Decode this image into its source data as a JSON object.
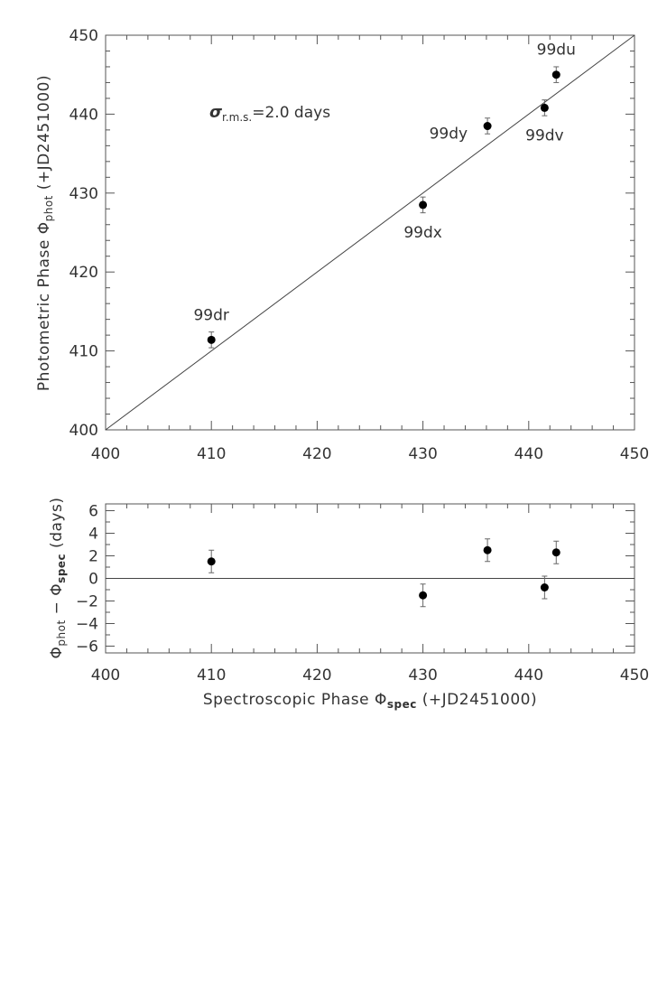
{
  "chart_data": [
    {
      "type": "scatter",
      "ylabel_main": "Photometric Phase ",
      "ylabel_sym": "Φ",
      "ylabel_sub": "phot",
      "ylabel_tail": " (+JD2451000)",
      "xlim": [
        400,
        450
      ],
      "ylim": [
        400,
        450
      ],
      "xticks": [
        400,
        410,
        420,
        430,
        440,
        450
      ],
      "yticks": [
        400,
        410,
        420,
        430,
        440,
        450
      ],
      "annotation_sigma": "σ",
      "annotation_sub": "r.m.s.",
      "annotation_tail": "=2.0 days",
      "fit_line": {
        "x": [
          400,
          450
        ],
        "y": [
          400,
          450
        ]
      },
      "points": [
        {
          "name": "99dr",
          "x": 410.0,
          "y": 411.4,
          "err": 1.0,
          "label_pos": "above"
        },
        {
          "name": "99dx",
          "x": 430.0,
          "y": 428.5,
          "err": 1.0,
          "label_pos": "below"
        },
        {
          "name": "99dy",
          "x": 436.1,
          "y": 438.5,
          "err": 1.0,
          "label_pos": "left"
        },
        {
          "name": "99dv",
          "x": 441.5,
          "y": 440.8,
          "err": 1.0,
          "label_pos": "below"
        },
        {
          "name": "99du",
          "x": 442.6,
          "y": 445.0,
          "err": 1.0,
          "label_pos": "above"
        }
      ]
    },
    {
      "type": "scatter",
      "ylabel_sym1": "Φ",
      "ylabel_sub1": "phot",
      "ylabel_mid": " − ",
      "ylabel_sym2": "Φ",
      "ylabel_sub2": "spec",
      "ylabel_tail": " (days)",
      "xlabel_main": "Spectroscopic Phase  ",
      "xlabel_sym": "Φ",
      "xlabel_sub": "spec",
      "xlabel_tail": " (+JD2451000)",
      "xlim": [
        400,
        450
      ],
      "ylim": [
        -6.6,
        6.6
      ],
      "xticks": [
        400,
        410,
        420,
        430,
        440,
        450
      ],
      "yticks": [
        6,
        4,
        2,
        0,
        -2,
        -4,
        -6
      ],
      "ytick_labels": [
        "6",
        "4",
        "2",
        "0",
        "−2",
        "−4",
        "−6"
      ],
      "zero_line": 0,
      "points": [
        {
          "x": 410.0,
          "y": 1.5,
          "err": 1.0
        },
        {
          "x": 430.0,
          "y": -1.5,
          "err": 1.0
        },
        {
          "x": 436.1,
          "y": 2.5,
          "err": 1.0
        },
        {
          "x": 441.5,
          "y": -0.8,
          "err": 1.0
        },
        {
          "x": 442.6,
          "y": 2.3,
          "err": 1.0
        }
      ]
    }
  ]
}
